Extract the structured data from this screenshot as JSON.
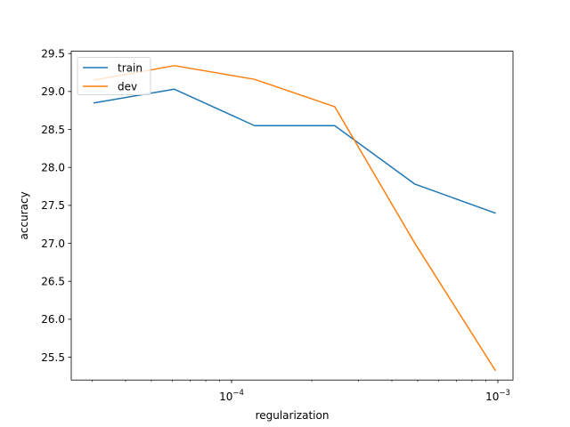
{
  "chart_data": {
    "type": "line",
    "xscale": "log",
    "x": [
      3.05e-05,
      6.1e-05,
      0.000122,
      0.000244,
      0.000488,
      0.000977
    ],
    "series": [
      {
        "name": "train",
        "color": "#1f77b4",
        "values": [
          28.85,
          29.03,
          28.55,
          28.55,
          27.78,
          27.4
        ]
      },
      {
        "name": "dev",
        "color": "#ff7f0e",
        "values": [
          29.15,
          29.34,
          29.16,
          28.8,
          27.0,
          25.33
        ]
      }
    ],
    "title": "",
    "xlabel": "regularization",
    "ylabel": "accuracy",
    "xlim": [
      2.5e-05,
      0.00114
    ],
    "ylim": [
      25.2,
      29.53
    ],
    "yticks": [
      25.5,
      26.0,
      26.5,
      27.0,
      27.5,
      28.0,
      28.5,
      29.0,
      29.5
    ],
    "ytick_labels": [
      "25.5",
      "26.0",
      "26.5",
      "27.0",
      "27.5",
      "28.0",
      "28.5",
      "29.0",
      "29.5"
    ],
    "xticks_major": [
      0.0001,
      0.001
    ],
    "xtick_base": "10",
    "xtick_exponents": [
      "−4",
      "−3"
    ],
    "grid": false,
    "legend_position": "upper left"
  }
}
